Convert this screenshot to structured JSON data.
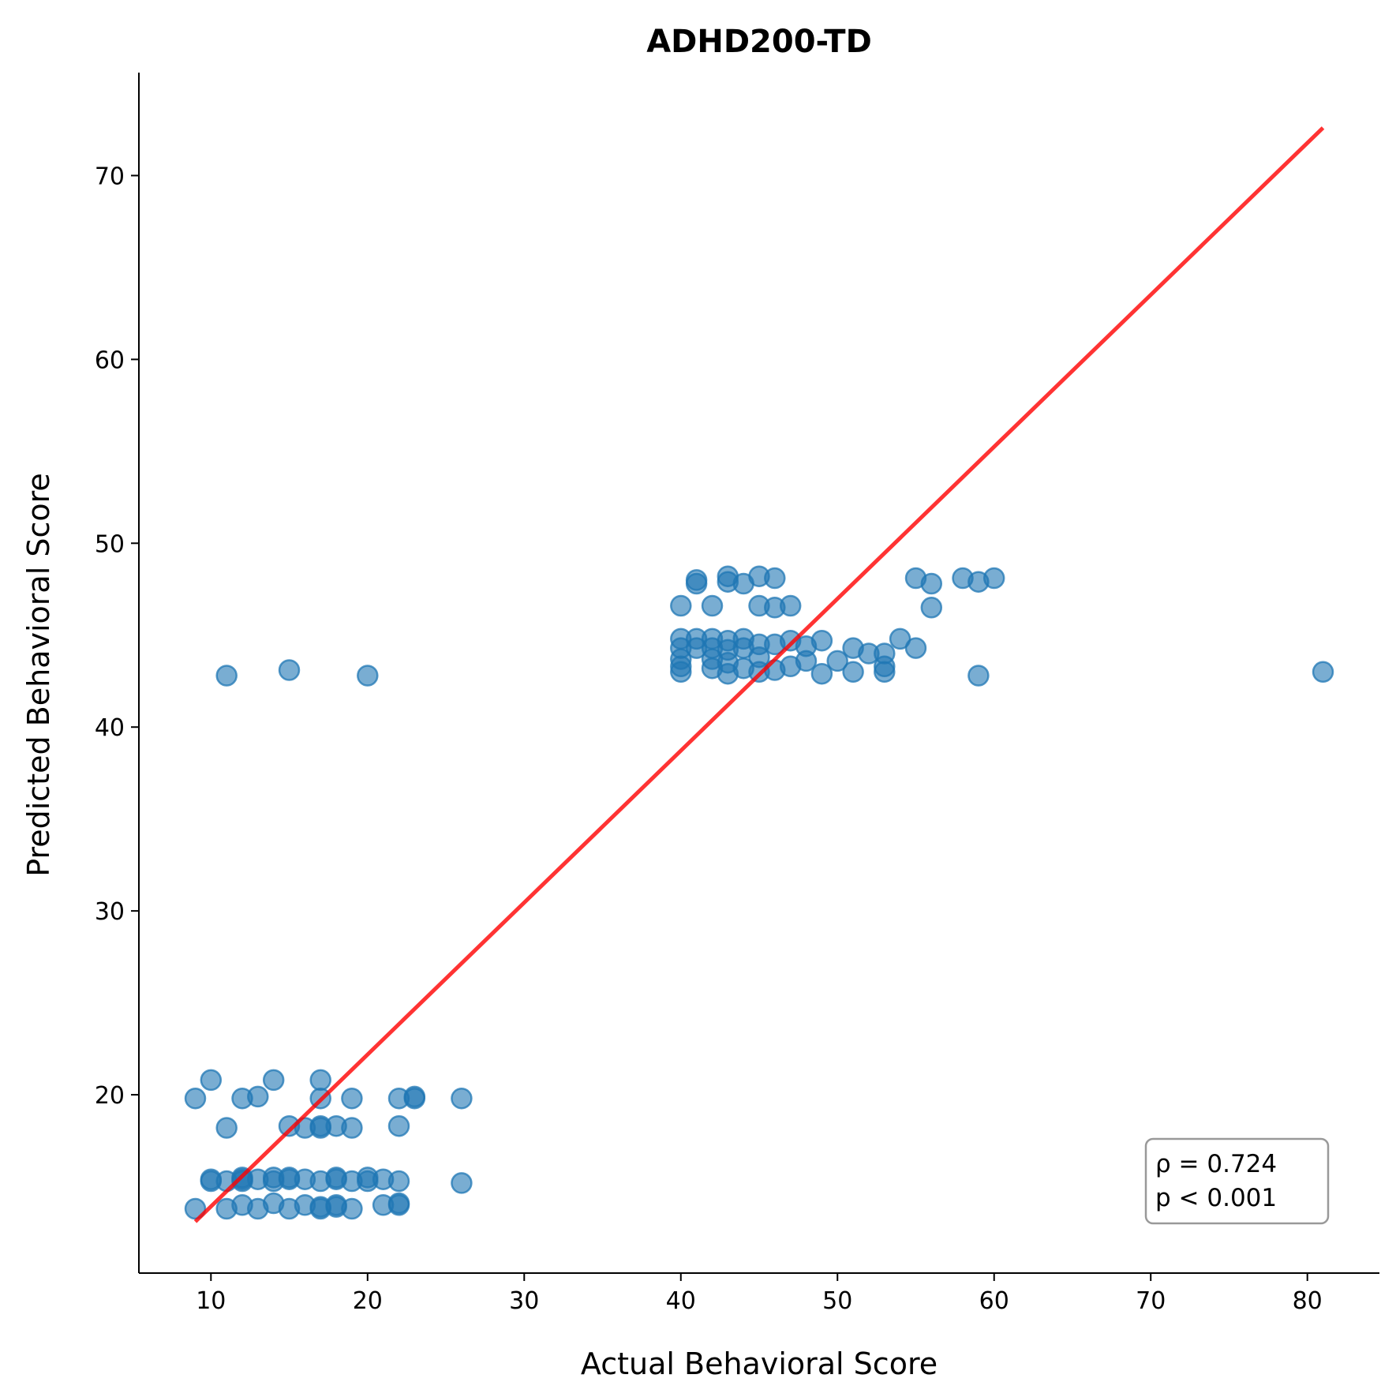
{
  "chart_data": {
    "type": "scatter",
    "title": "ADHD200-TD",
    "xlabel": "Actual Behavioral Score",
    "ylabel": "Predicted Behavioral Score",
    "xlim": [
      5.4,
      84.6
    ],
    "ylim": [
      10.3,
      75.6
    ],
    "xticks": [
      10,
      20,
      30,
      40,
      50,
      60,
      70,
      80
    ],
    "yticks": [
      20,
      30,
      40,
      50,
      60,
      70
    ],
    "grid": false,
    "point_color": "#1f77b4",
    "fit_line_color": "#ff0000",
    "fit_line": {
      "x": [
        9,
        81
      ],
      "y": [
        13.1,
        72.6
      ]
    },
    "stats": {
      "rho": "ρ = 0.724",
      "p": "p < 0.001"
    },
    "points": [
      [
        9,
        19.8
      ],
      [
        10,
        20.8
      ],
      [
        11,
        18.2
      ],
      [
        12,
        19.8
      ],
      [
        13,
        19.9
      ],
      [
        14,
        20.8
      ],
      [
        15,
        18.3
      ],
      [
        16,
        18.2
      ],
      [
        17,
        20.8
      ],
      [
        17,
        19.8
      ],
      [
        17,
        18.3
      ],
      [
        17,
        18.2
      ],
      [
        18,
        18.3
      ],
      [
        19,
        18.2
      ],
      [
        19,
        19.8
      ],
      [
        22,
        19.8
      ],
      [
        22,
        18.3
      ],
      [
        23,
        19.8
      ],
      [
        23,
        19.9
      ],
      [
        26,
        19.8
      ],
      [
        10,
        15.3
      ],
      [
        10,
        15.4
      ],
      [
        11,
        15.3
      ],
      [
        12,
        15.5
      ],
      [
        12,
        15.4
      ],
      [
        12,
        15.3
      ],
      [
        13,
        15.4
      ],
      [
        14,
        15.3
      ],
      [
        14,
        15.5
      ],
      [
        15,
        15.4
      ],
      [
        15,
        15.5
      ],
      [
        16,
        15.4
      ],
      [
        17,
        15.3
      ],
      [
        18,
        15.4
      ],
      [
        18,
        15.5
      ],
      [
        19,
        15.3
      ],
      [
        20,
        15.5
      ],
      [
        20,
        15.3
      ],
      [
        21,
        15.4
      ],
      [
        22,
        15.3
      ],
      [
        26,
        15.2
      ],
      [
        9,
        13.8
      ],
      [
        11,
        13.8
      ],
      [
        12,
        14.0
      ],
      [
        13,
        13.8
      ],
      [
        14,
        14.1
      ],
      [
        15,
        13.8
      ],
      [
        16,
        14.0
      ],
      [
        17,
        13.8
      ],
      [
        17,
        13.9
      ],
      [
        18,
        14.0
      ],
      [
        18,
        13.9
      ],
      [
        19,
        13.8
      ],
      [
        21,
        14.0
      ],
      [
        22,
        14.1
      ],
      [
        22,
        14.0
      ],
      [
        11,
        42.8
      ],
      [
        15,
        43.1
      ],
      [
        20,
        42.8
      ],
      [
        59,
        42.8
      ],
      [
        81,
        43.0
      ],
      [
        40,
        46.6
      ],
      [
        40,
        44.8
      ],
      [
        40,
        44.3
      ],
      [
        40,
        43.7
      ],
      [
        40,
        43.3
      ],
      [
        40,
        43.0
      ],
      [
        41,
        48.0
      ],
      [
        41,
        47.8
      ],
      [
        41,
        44.8
      ],
      [
        41,
        44.3
      ],
      [
        42,
        46.6
      ],
      [
        42,
        44.8
      ],
      [
        42,
        44.3
      ],
      [
        42,
        43.7
      ],
      [
        42,
        43.2
      ],
      [
        43,
        48.2
      ],
      [
        43,
        47.9
      ],
      [
        43,
        44.7
      ],
      [
        43,
        44.2
      ],
      [
        43,
        43.5
      ],
      [
        43,
        42.9
      ],
      [
        44,
        47.8
      ],
      [
        44,
        44.8
      ],
      [
        44,
        44.3
      ],
      [
        44,
        43.2
      ],
      [
        45,
        48.2
      ],
      [
        45,
        46.6
      ],
      [
        45,
        44.5
      ],
      [
        45,
        43.8
      ],
      [
        45,
        43.0
      ],
      [
        46,
        48.1
      ],
      [
        46,
        46.5
      ],
      [
        46,
        44.5
      ],
      [
        46,
        43.1
      ],
      [
        47,
        46.6
      ],
      [
        47,
        44.7
      ],
      [
        47,
        43.3
      ],
      [
        48,
        44.4
      ],
      [
        48,
        43.6
      ],
      [
        49,
        44.7
      ],
      [
        49,
        42.9
      ],
      [
        50,
        43.6
      ],
      [
        51,
        44.3
      ],
      [
        51,
        43.0
      ],
      [
        52,
        44.0
      ],
      [
        53,
        44.0
      ],
      [
        53,
        43.3
      ],
      [
        53,
        43.0
      ],
      [
        54,
        44.8
      ],
      [
        55,
        48.1
      ],
      [
        55,
        44.3
      ],
      [
        56,
        47.8
      ],
      [
        56,
        46.5
      ],
      [
        58,
        48.1
      ],
      [
        59,
        47.9
      ],
      [
        60,
        48.1
      ]
    ]
  }
}
